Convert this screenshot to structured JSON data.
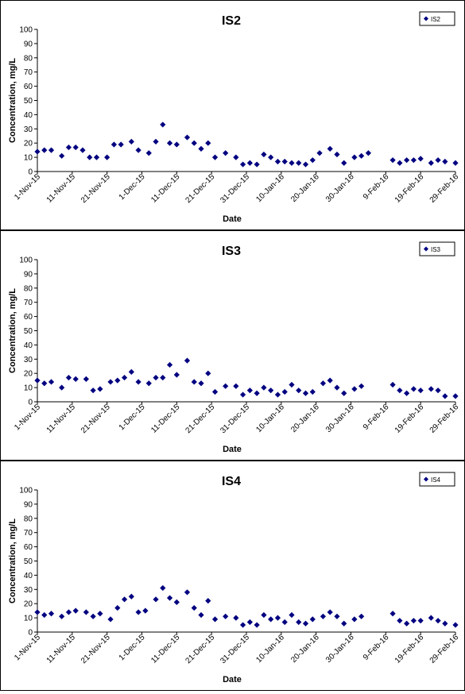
{
  "chart_data": [
    {
      "type": "scatter",
      "title": "IS2",
      "xlabel": "Date",
      "ylabel": "Concentration, mg/L",
      "ylim": [
        0,
        100
      ],
      "y_ticks": [
        "0",
        "10",
        "20",
        "30",
        "40",
        "50",
        "60",
        "70",
        "80",
        "90",
        "100"
      ],
      "x_ticks": [
        "1-Nov-15",
        "11-Nov-15",
        "21-Nov-15",
        "1-Dec-15",
        "11-Dec-15",
        "21-Dec-15",
        "31-Dec-15",
        "10-Jan-16",
        "20-Jan-16",
        "30-Jan-16",
        "9-Feb-16",
        "19-Feb-16",
        "29-Feb-16"
      ],
      "xlim": [
        "2015-11-01",
        "2016-02-29"
      ],
      "legend": "top-right",
      "grid": false,
      "series": [
        {
          "name": "IS2",
          "marker": "diamond",
          "color": "#000080",
          "x": [
            "2015-11-01",
            "2015-11-03",
            "2015-11-05",
            "2015-11-08",
            "2015-11-10",
            "2015-11-12",
            "2015-11-14",
            "2015-11-16",
            "2015-11-18",
            "2015-11-21",
            "2015-11-23",
            "2015-11-25",
            "2015-11-28",
            "2015-11-30",
            "2015-12-03",
            "2015-12-05",
            "2015-12-07",
            "2015-12-09",
            "2015-12-11",
            "2015-12-14",
            "2015-12-16",
            "2015-12-18",
            "2015-12-20",
            "2015-12-22",
            "2015-12-25",
            "2015-12-28",
            "2015-12-30",
            "2016-01-01",
            "2016-01-03",
            "2016-01-05",
            "2016-01-07",
            "2016-01-09",
            "2016-01-11",
            "2016-01-13",
            "2016-01-15",
            "2016-01-17",
            "2016-01-19",
            "2016-01-21",
            "2016-01-24",
            "2016-01-26",
            "2016-01-28",
            "2016-01-31",
            "2016-02-02",
            "2016-02-04",
            "2016-02-11",
            "2016-02-13",
            "2016-02-15",
            "2016-02-17",
            "2016-02-19",
            "2016-02-22",
            "2016-02-24",
            "2016-02-26",
            "2016-02-29"
          ],
          "y": [
            14,
            15,
            15,
            11,
            17,
            17,
            15,
            10,
            10,
            10,
            19,
            19,
            21,
            15,
            13,
            21,
            33,
            20,
            19,
            24,
            20,
            16,
            20,
            10,
            13,
            10,
            5,
            6,
            5,
            12,
            10,
            7,
            7,
            6,
            6,
            5,
            8,
            13,
            16,
            12,
            6,
            10,
            11,
            13,
            8,
            6,
            8,
            8,
            9,
            6,
            8,
            7,
            6
          ]
        }
      ]
    },
    {
      "type": "scatter",
      "title": "IS3",
      "xlabel": "Date",
      "ylabel": "Concentration, mg/L",
      "ylim": [
        0,
        100
      ],
      "y_ticks": [
        "0",
        "10",
        "20",
        "30",
        "40",
        "50",
        "60",
        "70",
        "80",
        "90",
        "100"
      ],
      "x_ticks": [
        "1-Nov-15",
        "11-Nov-15",
        "21-Nov-15",
        "1-Dec-15",
        "11-Dec-15",
        "21-Dec-15",
        "31-Dec-15",
        "10-Jan-16",
        "20-Jan-16",
        "30-Jan-16",
        "9-Feb-16",
        "19-Feb-16",
        "29-Feb-16"
      ],
      "xlim": [
        "2015-11-01",
        "2016-02-29"
      ],
      "legend": "top-right",
      "grid": false,
      "series": [
        {
          "name": "IS3",
          "marker": "diamond",
          "color": "#000080",
          "x": [
            "2015-11-01",
            "2015-11-03",
            "2015-11-05",
            "2015-11-08",
            "2015-11-10",
            "2015-11-12",
            "2015-11-15",
            "2015-11-17",
            "2015-11-19",
            "2015-11-22",
            "2015-11-24",
            "2015-11-26",
            "2015-11-28",
            "2015-11-30",
            "2015-12-03",
            "2015-12-05",
            "2015-12-07",
            "2015-12-09",
            "2015-12-11",
            "2015-12-14",
            "2015-12-16",
            "2015-12-18",
            "2015-12-20",
            "2015-12-22",
            "2015-12-25",
            "2015-12-28",
            "2015-12-30",
            "2016-01-01",
            "2016-01-03",
            "2016-01-05",
            "2016-01-07",
            "2016-01-09",
            "2016-01-11",
            "2016-01-13",
            "2016-01-15",
            "2016-01-17",
            "2016-01-19",
            "2016-01-22",
            "2016-01-24",
            "2016-01-26",
            "2016-01-28",
            "2016-01-31",
            "2016-02-02",
            "2016-02-11",
            "2016-02-13",
            "2016-02-15",
            "2016-02-17",
            "2016-02-19",
            "2016-02-22",
            "2016-02-24",
            "2016-02-26",
            "2016-02-29"
          ],
          "y": [
            15,
            13,
            14,
            10,
            17,
            16,
            16,
            8,
            9,
            14,
            15,
            17,
            21,
            14,
            13,
            17,
            17,
            26,
            19,
            29,
            14,
            13,
            20,
            7,
            11,
            11,
            5,
            8,
            6,
            10,
            8,
            5,
            7,
            12,
            8,
            6,
            7,
            13,
            15,
            10,
            6,
            9,
            11,
            12,
            8,
            6,
            9,
            8,
            9,
            8,
            4,
            4
          ]
        }
      ]
    },
    {
      "type": "scatter",
      "title": "IS4",
      "xlabel": "Date",
      "ylabel": "Concentration, mg/L",
      "ylim": [
        0,
        100
      ],
      "y_ticks": [
        "0",
        "10",
        "20",
        "30",
        "40",
        "50",
        "60",
        "70",
        "80",
        "90",
        "100"
      ],
      "x_ticks": [
        "1-Nov-15",
        "11-Nov-15",
        "21-Nov-15",
        "1-Dec-15",
        "11-Dec-15",
        "21-Dec-15",
        "31-Dec-15",
        "10-Jan-16",
        "20-Jan-16",
        "30-Jan-16",
        "9-Feb-16",
        "19-Feb-16",
        "29-Feb-16"
      ],
      "xlim": [
        "2015-11-01",
        "2016-02-29"
      ],
      "legend": "top-right",
      "grid": false,
      "series": [
        {
          "name": "IS4",
          "marker": "diamond",
          "color": "#000080",
          "x": [
            "2015-11-01",
            "2015-11-03",
            "2015-11-05",
            "2015-11-08",
            "2015-11-10",
            "2015-11-12",
            "2015-11-15",
            "2015-11-17",
            "2015-11-19",
            "2015-11-22",
            "2015-11-24",
            "2015-11-26",
            "2015-11-28",
            "2015-11-30",
            "2015-12-02",
            "2015-12-05",
            "2015-12-07",
            "2015-12-09",
            "2015-12-11",
            "2015-12-14",
            "2015-12-16",
            "2015-12-18",
            "2015-12-20",
            "2015-12-22",
            "2015-12-25",
            "2015-12-28",
            "2015-12-30",
            "2016-01-01",
            "2016-01-03",
            "2016-01-05",
            "2016-01-07",
            "2016-01-09",
            "2016-01-11",
            "2016-01-13",
            "2016-01-15",
            "2016-01-17",
            "2016-01-19",
            "2016-01-22",
            "2016-01-24",
            "2016-01-26",
            "2016-01-28",
            "2016-01-31",
            "2016-02-02",
            "2016-02-11",
            "2016-02-13",
            "2016-02-15",
            "2016-02-17",
            "2016-02-19",
            "2016-02-22",
            "2016-02-24",
            "2016-02-26",
            "2016-02-29"
          ],
          "y": [
            14,
            12,
            13,
            11,
            14,
            15,
            14,
            11,
            13,
            9,
            17,
            23,
            25,
            14,
            15,
            23,
            31,
            24,
            21,
            28,
            17,
            12,
            22,
            9,
            11,
            10,
            5,
            7,
            5,
            12,
            9,
            10,
            7,
            12,
            7,
            6,
            9,
            11,
            14,
            11,
            6,
            9,
            11,
            13,
            8,
            6,
            8,
            8,
            10,
            8,
            6,
            5
          ]
        }
      ]
    }
  ]
}
